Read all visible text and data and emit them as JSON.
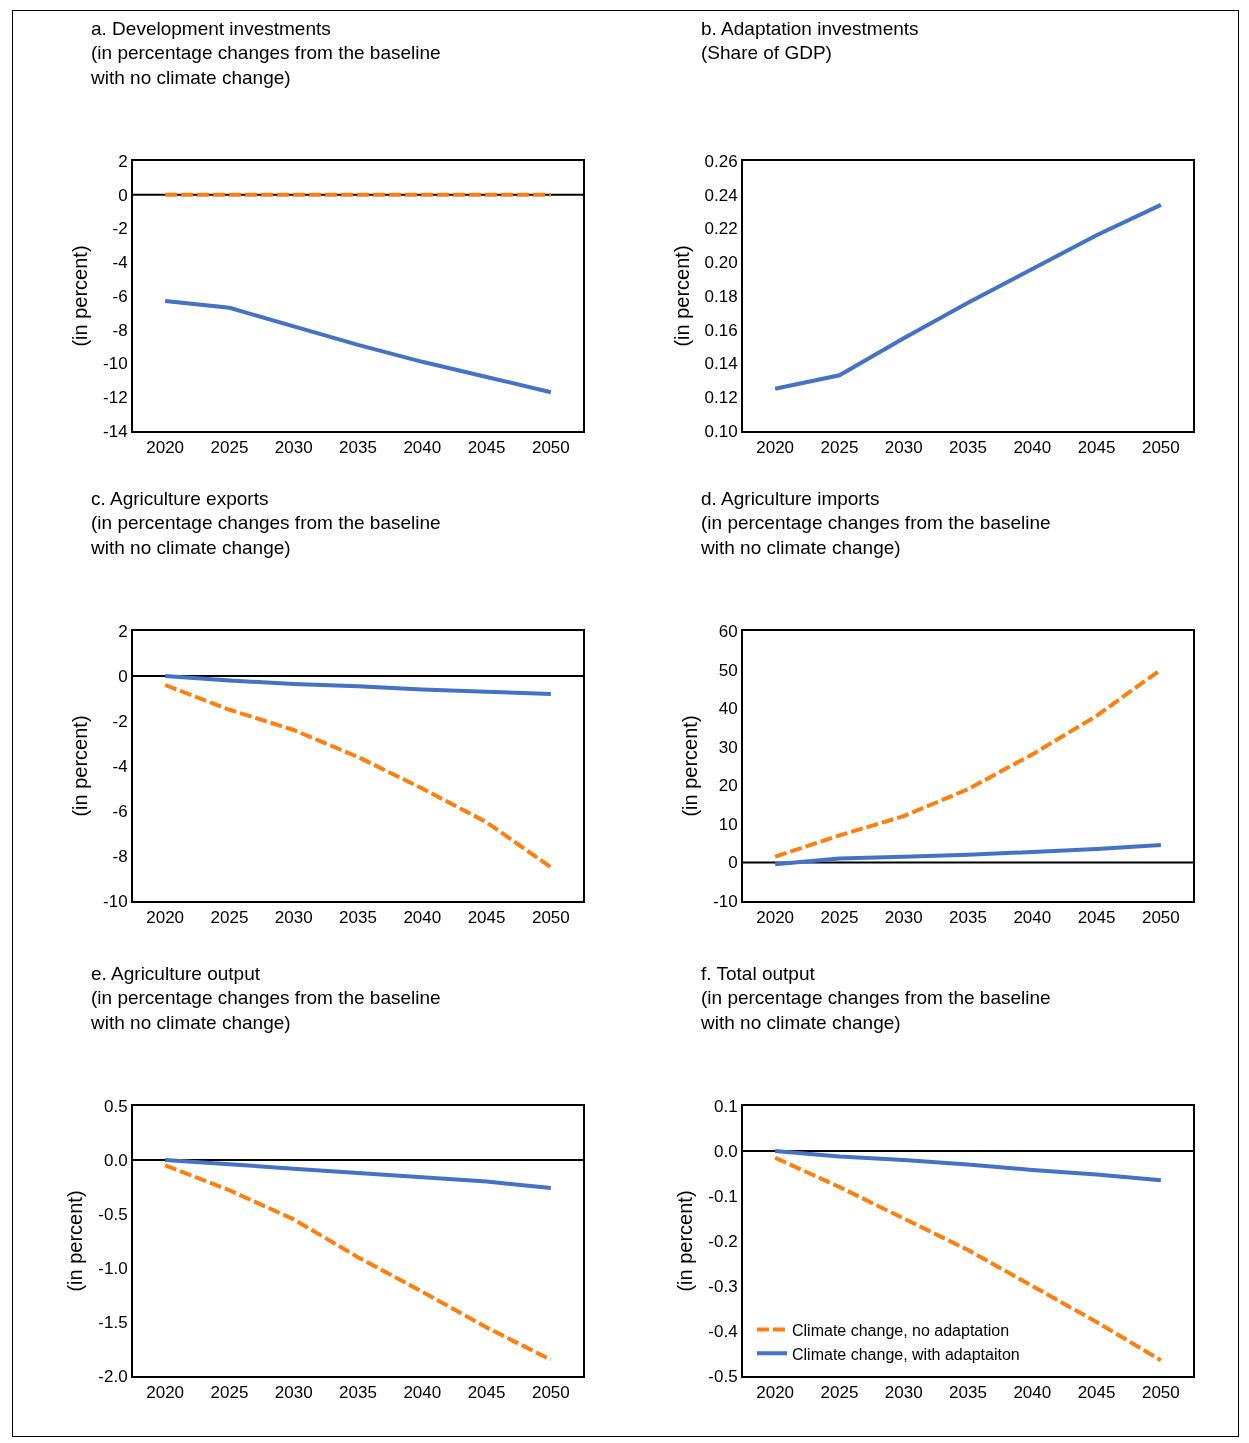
{
  "chart_data": [
    {
      "type": "line",
      "title": "a. Development investments",
      "subtitle": "(in percentage changes from the baseline with no climate change)",
      "ylabel": "(in percent)",
      "categories": [
        "2020",
        "2025",
        "2030",
        "2035",
        "2040",
        "2045",
        "2050"
      ],
      "ylim": [
        -14,
        2
      ],
      "yticks": [
        -14,
        -12,
        -10,
        -8,
        -6,
        -4,
        -2,
        0,
        2
      ],
      "grid": false,
      "legend": false,
      "ref_lines": [
        {
          "axis": "y",
          "value": 0,
          "color": "#000000"
        }
      ],
      "series": [
        {
          "color": "#ff7f0e",
          "line_style": "dashed",
          "values": [
            0,
            0,
            0,
            0,
            0,
            0,
            0
          ]
        },
        {
          "color": "#4472c4",
          "line_style": "solid",
          "values": [
            -6.3,
            -6.7,
            -7.8,
            -8.9,
            -9.9,
            -10.8,
            -11.7
          ]
        }
      ]
    },
    {
      "type": "line",
      "title": "b. Adaptation investments",
      "subtitle": "(Share of GDP)",
      "ylabel": "(in percent)",
      "categories": [
        "2020",
        "2025",
        "2030",
        "2035",
        "2040",
        "2045",
        "2050"
      ],
      "ylim": [
        0.1,
        0.26
      ],
      "yticks": [
        {
          "value": 0.1,
          "label": "0.10"
        },
        {
          "value": 0.12,
          "label": "0.12"
        },
        {
          "value": 0.14,
          "label": "0.14"
        },
        {
          "value": 0.16,
          "label": "0.16"
        },
        {
          "value": 0.18,
          "label": "0.18"
        },
        {
          "value": 0.2,
          "label": "0.20"
        },
        {
          "value": 0.22,
          "label": "0.22"
        },
        {
          "value": 0.24,
          "label": "0.24"
        },
        {
          "value": 0.26,
          "label": "0.26"
        }
      ],
      "grid": false,
      "legend": false,
      "series": [
        {
          "color": "#4472c4",
          "line_style": "solid",
          "values": [
            0.125,
            0.133,
            0.155,
            0.176,
            0.196,
            0.216,
            0.234
          ]
        }
      ]
    },
    {
      "type": "line",
      "title": "c. Agriculture exports",
      "subtitle": "(in percentage changes from the baseline with no climate change)",
      "ylabel": "(in percent)",
      "categories": [
        "2020",
        "2025",
        "2030",
        "2035",
        "2040",
        "2045",
        "2050"
      ],
      "ylim": [
        -10,
        2
      ],
      "yticks": [
        -10,
        -8,
        -6,
        -4,
        -2,
        0,
        2
      ],
      "grid": false,
      "legend": false,
      "ref_lines": [
        {
          "axis": "y",
          "value": 0,
          "color": "#000000"
        }
      ],
      "series": [
        {
          "color": "#ff7f0e",
          "line_style": "dashed",
          "values": [
            -0.4,
            -1.5,
            -2.4,
            -3.6,
            -5.0,
            -6.5,
            -8.5
          ]
        },
        {
          "color": "#4472c4",
          "line_style": "solid",
          "values": [
            0,
            -0.2,
            -0.35,
            -0.45,
            -0.6,
            -0.7,
            -0.8
          ]
        }
      ]
    },
    {
      "type": "line",
      "title": "d. Agriculture imports",
      "subtitle": "(in percentage changes from the baseline with no climate change)",
      "ylabel": "(in percent)",
      "categories": [
        "2020",
        "2025",
        "2030",
        "2035",
        "2040",
        "2045",
        "2050"
      ],
      "ylim": [
        -10,
        60
      ],
      "yticks": [
        -10,
        0,
        10,
        20,
        30,
        40,
        50,
        60
      ],
      "grid": false,
      "legend": false,
      "ref_lines": [
        {
          "axis": "y",
          "value": 0,
          "color": "#000000"
        }
      ],
      "series": [
        {
          "color": "#ff7f0e",
          "line_style": "dashed",
          "values": [
            1.5,
            7,
            12,
            19,
            28,
            38,
            50
          ]
        },
        {
          "color": "#4472c4",
          "line_style": "solid",
          "values": [
            -0.5,
            1,
            1.5,
            2,
            2.7,
            3.5,
            4.5
          ]
        }
      ]
    },
    {
      "type": "line",
      "title": "e. Agriculture output",
      "subtitle": "(in percentage changes from the baseline with no climate change)",
      "ylabel": "(in percent)",
      "categories": [
        "2020",
        "2025",
        "2030",
        "2035",
        "2040",
        "2045",
        "2050"
      ],
      "ylim": [
        -2.0,
        0.5
      ],
      "yticks": [
        {
          "value": -2,
          "label": "-2.0"
        },
        {
          "value": -1.5,
          "label": "-1.5"
        },
        {
          "value": -1,
          "label": "-1.0"
        },
        {
          "value": -0.5,
          "label": "-0.5"
        },
        {
          "value": 0,
          "label": "0.0"
        },
        {
          "value": 0.5,
          "label": "0.5"
        }
      ],
      "grid": false,
      "legend": false,
      "ref_lines": [
        {
          "axis": "y",
          "value": 0,
          "color": "#000000"
        }
      ],
      "series": [
        {
          "color": "#ff7f0e",
          "line_style": "dashed",
          "values": [
            -0.05,
            -0.28,
            -0.55,
            -0.9,
            -1.22,
            -1.55,
            -1.85
          ]
        },
        {
          "color": "#4472c4",
          "line_style": "solid",
          "values": [
            0,
            -0.04,
            -0.08,
            -0.12,
            -0.16,
            -0.2,
            -0.26
          ]
        }
      ]
    },
    {
      "type": "line",
      "title": "f. Total output",
      "subtitle": "(in percentage changes from the baseline with no climate change)",
      "ylabel": "(in percent)",
      "categories": [
        "2020",
        "2025",
        "2030",
        "2035",
        "2040",
        "2045",
        "2050"
      ],
      "ylim": [
        -0.5,
        0.1
      ],
      "yticks": [
        -0.5,
        -0.4,
        -0.3,
        -0.2,
        -0.1,
        {
          "value": 0,
          "label": "0.0"
        },
        0.1
      ],
      "grid": false,
      "legend": "bottom left",
      "ref_lines": [
        {
          "axis": "y",
          "value": 0,
          "color": "#000000"
        }
      ],
      "series": [
        {
          "name": "Climate change, no adaptation",
          "color": "#ff7f0e",
          "line_style": "dashed",
          "values": [
            -0.015,
            -0.08,
            -0.15,
            -0.22,
            -0.3,
            -0.38,
            -0.465
          ]
        },
        {
          "name": "Climate change, with adaptaiton",
          "color": "#4472c4",
          "line_style": "solid",
          "values": [
            0,
            -0.012,
            -0.02,
            -0.03,
            -0.042,
            -0.052,
            -0.065
          ]
        }
      ]
    }
  ]
}
